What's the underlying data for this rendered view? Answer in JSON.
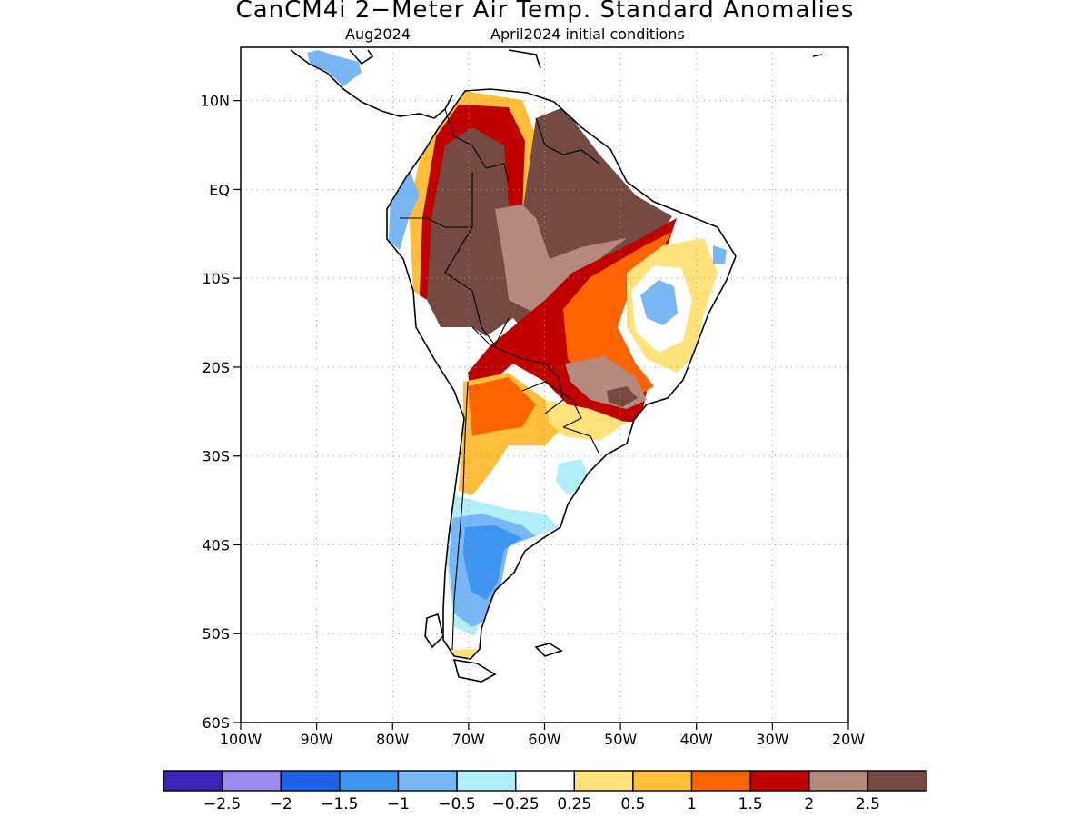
{
  "title": "CanCM4i 2−Meter Air Temp. Standard Anomalies",
  "subtitle_left": "Aug2024",
  "subtitle_right": "April2024 initial conditions",
  "map": {
    "lon_range": [
      -100,
      -20
    ],
    "lat_range": [
      -60,
      16
    ],
    "lat_ticks": [
      {
        "value": 10,
        "label": "10N"
      },
      {
        "value": 0,
        "label": "EQ"
      },
      {
        "value": -10,
        "label": "10S"
      },
      {
        "value": -20,
        "label": "20S"
      },
      {
        "value": -30,
        "label": "30S"
      },
      {
        "value": -40,
        "label": "40S"
      },
      {
        "value": -50,
        "label": "50S"
      },
      {
        "value": -60,
        "label": "60S"
      }
    ],
    "lon_ticks": [
      {
        "value": -100,
        "label": "100W"
      },
      {
        "value": -90,
        "label": "90W"
      },
      {
        "value": -80,
        "label": "80W"
      },
      {
        "value": -70,
        "label": "70W"
      },
      {
        "value": -60,
        "label": "60W"
      },
      {
        "value": -50,
        "label": "50W"
      },
      {
        "value": -40,
        "label": "40W"
      },
      {
        "value": -30,
        "label": "30W"
      },
      {
        "value": -20,
        "label": "20W"
      }
    ],
    "grid": "dotted"
  },
  "colorbar": {
    "colors": [
      "#3a24b6",
      "#9c8cf0",
      "#1f62e6",
      "#3d95f0",
      "#78b6f5",
      "#b2eef8",
      "#ffffff",
      "#ffe27a",
      "#ffbe3a",
      "#ff6400",
      "#c00000",
      "#b48a7e",
      "#744a42"
    ],
    "labels": [
      "−2.5",
      "−2",
      "−1.5",
      "−1",
      "−0.5",
      "−0.25",
      "0.25",
      "0.5",
      "1",
      "1.5",
      "2",
      "2.5"
    ]
  }
}
